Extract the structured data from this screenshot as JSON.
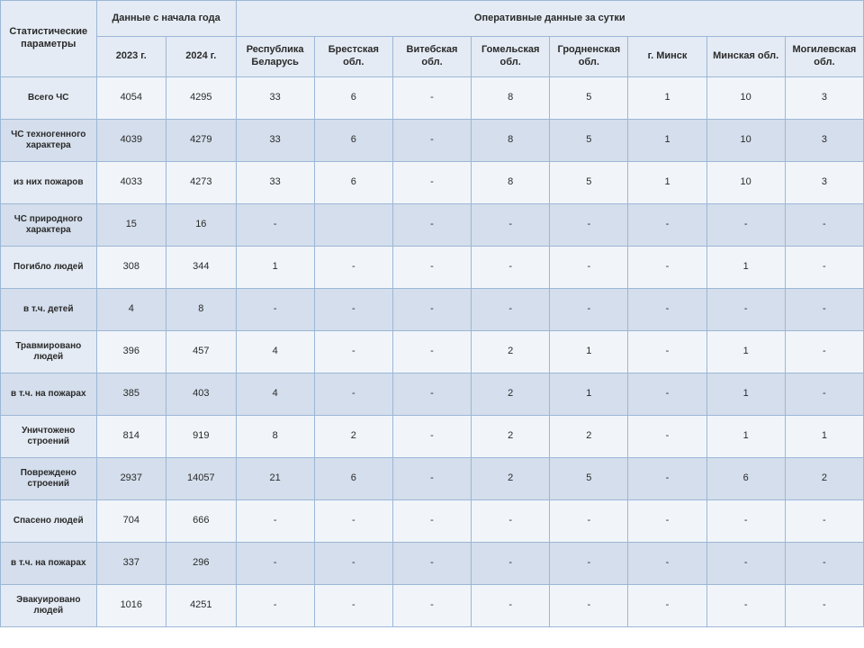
{
  "table": {
    "type": "table",
    "colors": {
      "border": "#9cb7d6",
      "header_bg": "#e4ebf4",
      "row_plain_bg": "#f1f5fa",
      "row_shaded_bg": "#d4deec",
      "text": "#2a2a2a"
    },
    "fonts": {
      "header_size_pt": 8,
      "cell_size_pt": 8,
      "header_weight": "bold"
    },
    "header": {
      "param": "Статистические параметры",
      "year_group": "Данные\nс начала года",
      "daily_group": "Оперативные данные за сутки",
      "year_2023": "2023 г.",
      "year_2024": "2024 г.",
      "regions": [
        "Республика Беларусь",
        "Брестская обл.",
        "Витебская обл.",
        "Гомельская обл.",
        "Гродненская обл.",
        "г. Минск",
        "Минская обл.",
        "Могилевская обл."
      ]
    },
    "rows": [
      {
        "shaded": false,
        "label": "Всего ЧС",
        "y2023": "4054",
        "y2024": "4295",
        "cells": [
          "33",
          "6",
          "-",
          "8",
          "5",
          "1",
          "10",
          "3"
        ]
      },
      {
        "shaded": true,
        "label": "ЧС техногенного характера",
        "y2023": "4039",
        "y2024": "4279",
        "cells": [
          "33",
          "6",
          "-",
          "8",
          "5",
          "1",
          "10",
          "3"
        ]
      },
      {
        "shaded": false,
        "label": "из них пожаров",
        "y2023": "4033",
        "y2024": "4273",
        "cells": [
          "33",
          "6",
          "-",
          "8",
          "5",
          "1",
          "10",
          "3"
        ]
      },
      {
        "shaded": true,
        "label": "ЧС природного характера",
        "y2023": "15",
        "y2024": "16",
        "cells": [
          "-",
          "",
          "-",
          "-",
          "-",
          "-",
          "-",
          "-"
        ]
      },
      {
        "shaded": false,
        "label": "Погибло людей",
        "y2023": "308",
        "y2024": "344",
        "cells": [
          "1",
          "-",
          "-",
          "-",
          "-",
          "-",
          "1",
          "-"
        ]
      },
      {
        "shaded": true,
        "label": "в т.ч. детей",
        "y2023": "4",
        "y2024": "8",
        "cells": [
          "-",
          "-",
          "-",
          "-",
          "-",
          "-",
          "-",
          "-"
        ]
      },
      {
        "shaded": false,
        "label": "Травмировано людей",
        "y2023": "396",
        "y2024": "457",
        "cells": [
          "4",
          "-",
          "-",
          "2",
          "1",
          "-",
          "1",
          "-"
        ]
      },
      {
        "shaded": true,
        "label": "в т.ч. на пожарах",
        "y2023": "385",
        "y2024": "403",
        "cells": [
          "4",
          "-",
          "-",
          "2",
          "1",
          "-",
          "1",
          "-"
        ]
      },
      {
        "shaded": false,
        "label": "Уничтожено строений",
        "y2023": "814",
        "y2024": "919",
        "cells": [
          "8",
          "2",
          "-",
          "2",
          "2",
          "-",
          "1",
          "1"
        ]
      },
      {
        "shaded": true,
        "label": "Повреждено строений",
        "y2023": "2937",
        "y2024": "14057",
        "cells": [
          "21",
          "6",
          "-",
          "2",
          "5",
          "-",
          "6",
          "2"
        ]
      },
      {
        "shaded": false,
        "label": "Спасено людей",
        "y2023": "704",
        "y2024": "666",
        "cells": [
          "-",
          "-",
          "-",
          "-",
          "-",
          "-",
          "-",
          "-"
        ]
      },
      {
        "shaded": true,
        "label": "в т.ч. на пожарах",
        "y2023": "337",
        "y2024": "296",
        "cells": [
          "-",
          "-",
          "-",
          "-",
          "-",
          "-",
          "-",
          "-"
        ]
      },
      {
        "shaded": false,
        "label": "Эвакуировано людей",
        "y2023": "1016",
        "y2024": "4251",
        "cells": [
          "-",
          "-",
          "-",
          "-",
          "-",
          "-",
          "-",
          "-"
        ]
      }
    ]
  }
}
